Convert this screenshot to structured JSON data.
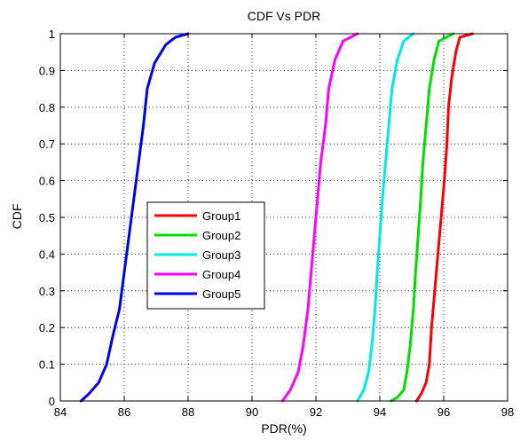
{
  "chart_data": {
    "type": "line",
    "title": "CDF Vs PDR",
    "xlabel": "PDR(%)",
    "ylabel": "CDF",
    "xlim": [
      84,
      98
    ],
    "ylim": [
      0,
      1
    ],
    "xticks": [
      84,
      86,
      88,
      90,
      92,
      94,
      96,
      98
    ],
    "yticks": [
      0,
      0.1,
      0.2,
      0.3,
      0.4,
      0.5,
      0.6,
      0.7,
      0.8,
      0.9,
      1
    ],
    "xtick_labels": [
      "84",
      "86",
      "88",
      "90",
      "92",
      "94",
      "96",
      "98"
    ],
    "ytick_labels": [
      "0",
      "0.1",
      "0.2",
      "0.3",
      "0.4",
      "0.5",
      "0.6",
      "0.7",
      "0.8",
      "0.9",
      "1"
    ],
    "grid": true,
    "legend": "center-left",
    "series": [
      {
        "name": "Group1",
        "color": "#ff0000",
        "points": [
          [
            95.15,
            0
          ],
          [
            95.3,
            0.02
          ],
          [
            95.45,
            0.05
          ],
          [
            95.55,
            0.1
          ],
          [
            95.62,
            0.2
          ],
          [
            95.72,
            0.3
          ],
          [
            95.82,
            0.4
          ],
          [
            95.92,
            0.5
          ],
          [
            96.02,
            0.6
          ],
          [
            96.1,
            0.7
          ],
          [
            96.15,
            0.8
          ],
          [
            96.25,
            0.88
          ],
          [
            96.38,
            0.95
          ],
          [
            96.5,
            0.99
          ],
          [
            96.9,
            1
          ]
        ]
      },
      {
        "name": "Group2",
        "color": "#00dd00",
        "points": [
          [
            94.35,
            0
          ],
          [
            94.55,
            0.01
          ],
          [
            94.75,
            0.03
          ],
          [
            94.85,
            0.08
          ],
          [
            94.95,
            0.15
          ],
          [
            95.05,
            0.25
          ],
          [
            95.12,
            0.35
          ],
          [
            95.2,
            0.45
          ],
          [
            95.28,
            0.55
          ],
          [
            95.35,
            0.65
          ],
          [
            95.45,
            0.75
          ],
          [
            95.55,
            0.85
          ],
          [
            95.7,
            0.93
          ],
          [
            95.85,
            0.98
          ],
          [
            96.3,
            1
          ]
        ]
      },
      {
        "name": "Group3",
        "color": "#00e8e8",
        "points": [
          [
            93.3,
            0
          ],
          [
            93.5,
            0.03
          ],
          [
            93.65,
            0.08
          ],
          [
            93.75,
            0.15
          ],
          [
            93.85,
            0.25
          ],
          [
            93.92,
            0.35
          ],
          [
            94.0,
            0.45
          ],
          [
            94.08,
            0.55
          ],
          [
            94.18,
            0.65
          ],
          [
            94.28,
            0.75
          ],
          [
            94.38,
            0.85
          ],
          [
            94.55,
            0.93
          ],
          [
            94.75,
            0.98
          ],
          [
            95.05,
            1
          ]
        ]
      },
      {
        "name": "Group4",
        "color": "#ff00ff",
        "points": [
          [
            90.95,
            0
          ],
          [
            91.2,
            0.03
          ],
          [
            91.45,
            0.08
          ],
          [
            91.6,
            0.15
          ],
          [
            91.75,
            0.25
          ],
          [
            91.85,
            0.35
          ],
          [
            91.95,
            0.45
          ],
          [
            92.05,
            0.55
          ],
          [
            92.15,
            0.65
          ],
          [
            92.3,
            0.75
          ],
          [
            92.4,
            0.85
          ],
          [
            92.6,
            0.93
          ],
          [
            92.85,
            0.98
          ],
          [
            93.3,
            1
          ]
        ]
      },
      {
        "name": "Group5",
        "color": "#0000ee",
        "points": [
          [
            84.65,
            0
          ],
          [
            84.9,
            0.02
          ],
          [
            85.2,
            0.05
          ],
          [
            85.45,
            0.1
          ],
          [
            85.65,
            0.18
          ],
          [
            85.85,
            0.25
          ],
          [
            86.0,
            0.35
          ],
          [
            86.15,
            0.45
          ],
          [
            86.3,
            0.55
          ],
          [
            86.45,
            0.65
          ],
          [
            86.6,
            0.75
          ],
          [
            86.72,
            0.85
          ],
          [
            86.95,
            0.92
          ],
          [
            87.3,
            0.97
          ],
          [
            87.6,
            0.99
          ],
          [
            88.0,
            1
          ]
        ]
      }
    ]
  }
}
